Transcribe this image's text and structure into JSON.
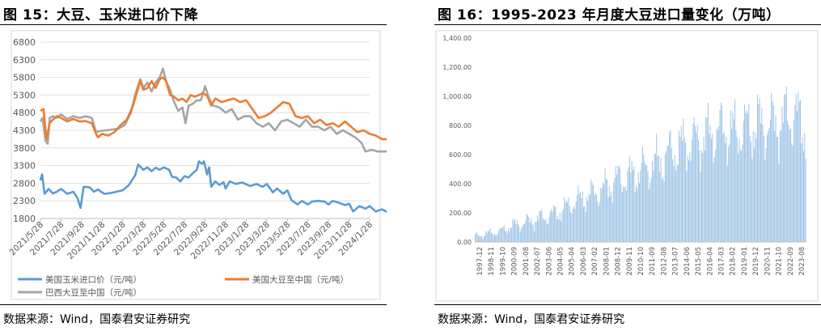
{
  "panels": [
    {
      "title": "图 15：大豆、玉米进口价下降",
      "source": "数据来源：Wind，国泰君安证券研究"
    },
    {
      "title": "图 16：1995-2023 年月度大豆进口量变化（万吨）",
      "source": "数据来源：Wind，国泰君安证券研究"
    }
  ],
  "chart_data": [
    {
      "type": "line",
      "title": "",
      "xlabel": "",
      "ylabel": "",
      "ylim": [
        1800,
        6800
      ],
      "yticks": [
        1800,
        2300,
        2800,
        3300,
        3800,
        4300,
        4800,
        5300,
        5800,
        6300,
        6800
      ],
      "xticks": [
        "2021/5/28",
        "2021/7/28",
        "2021/9/28",
        "2021/11/28",
        "2022/1/28",
        "2022/3/28",
        "2022/5/28",
        "2022/7/28",
        "2022/9/28",
        "2022/11/28",
        "2023/1/28",
        "2023/3/28",
        "2023/5/28",
        "2023/7/28",
        "2023/9/28",
        "2023/11/28",
        "2024/1/28"
      ],
      "grid": true,
      "legend": "bottom",
      "colors": {
        "corn": "#5b9bd5",
        "us_soy": "#ed7d31",
        "br_soy": "#a5a5a5",
        "grid": "#d9d9d9",
        "axis": "#bfbfbf"
      },
      "series": [
        {
          "name": "美国玉米进口价（元/吨）",
          "key": "corn",
          "points": [
            [
              0,
              2880
            ],
            [
              0.08,
              3050
            ],
            [
              0.2,
              2500
            ],
            [
              0.4,
              2640
            ],
            [
              0.6,
              2510
            ],
            [
              0.8,
              2560
            ],
            [
              1.0,
              2640
            ],
            [
              1.3,
              2500
            ],
            [
              1.6,
              2560
            ],
            [
              1.8,
              2380
            ],
            [
              1.95,
              2100
            ],
            [
              2.1,
              2700
            ],
            [
              2.4,
              2680
            ],
            [
              2.6,
              2560
            ],
            [
              2.8,
              2620
            ],
            [
              3.1,
              2500
            ],
            [
              3.4,
              2520
            ],
            [
              3.7,
              2560
            ],
            [
              4.0,
              2600
            ],
            [
              4.3,
              2750
            ],
            [
              4.6,
              3020
            ],
            [
              4.75,
              3330
            ],
            [
              5.0,
              3180
            ],
            [
              5.2,
              3250
            ],
            [
              5.4,
              3140
            ],
            [
              5.6,
              3240
            ],
            [
              5.8,
              3180
            ],
            [
              6.0,
              3250
            ],
            [
              6.1,
              3220
            ],
            [
              6.25,
              3180
            ],
            [
              6.4,
              2980
            ],
            [
              6.6,
              2960
            ],
            [
              6.8,
              2850
            ],
            [
              7.0,
              3000
            ],
            [
              7.2,
              2960
            ],
            [
              7.4,
              3080
            ],
            [
              7.6,
              3180
            ],
            [
              7.7,
              3420
            ],
            [
              7.85,
              3350
            ],
            [
              7.95,
              3420
            ],
            [
              8.1,
              3050
            ],
            [
              8.2,
              3250
            ],
            [
              8.3,
              2700
            ],
            [
              8.5,
              2850
            ],
            [
              8.7,
              2750
            ],
            [
              8.9,
              2830
            ],
            [
              9.0,
              2650
            ],
            [
              9.2,
              2850
            ],
            [
              9.5,
              2780
            ],
            [
              9.8,
              2820
            ],
            [
              10.2,
              2720
            ],
            [
              10.5,
              2780
            ],
            [
              10.8,
              2700
            ],
            [
              11.0,
              2780
            ],
            [
              11.3,
              2540
            ],
            [
              11.5,
              2650
            ],
            [
              11.8,
              2500
            ],
            [
              12.0,
              2600
            ],
            [
              12.2,
              2320
            ],
            [
              12.5,
              2200
            ],
            [
              12.7,
              2300
            ],
            [
              13.0,
              2200
            ],
            [
              13.2,
              2280
            ],
            [
              13.5,
              2300
            ],
            [
              13.8,
              2280
            ],
            [
              14.0,
              2200
            ],
            [
              14.2,
              2300
            ],
            [
              14.5,
              2250
            ],
            [
              14.8,
              2180
            ],
            [
              15.0,
              2220
            ],
            [
              15.2,
              2000
            ],
            [
              15.5,
              2150
            ],
            [
              15.8,
              2080
            ],
            [
              16.0,
              2150
            ],
            [
              16.3,
              2000
            ],
            [
              16.6,
              2060
            ],
            [
              16.8,
              2000
            ],
            [
              17.0,
              1960
            ]
          ]
        },
        {
          "name": "美国大豆至中国（元/吨）",
          "key": "us_soy",
          "points": [
            [
              0,
              4850
            ],
            [
              0.15,
              4900
            ],
            [
              0.3,
              4050
            ],
            [
              0.45,
              4500
            ],
            [
              0.6,
              4600
            ],
            [
              0.8,
              4700
            ],
            [
              1.0,
              4650
            ],
            [
              1.3,
              4550
            ],
            [
              1.6,
              4620
            ],
            [
              1.9,
              4550
            ],
            [
              2.2,
              4560
            ],
            [
              2.5,
              4500
            ],
            [
              2.7,
              4200
            ],
            [
              2.8,
              4100
            ],
            [
              3.0,
              4200
            ],
            [
              3.3,
              4150
            ],
            [
              3.6,
              4250
            ],
            [
              3.9,
              4450
            ],
            [
              4.2,
              4600
            ],
            [
              4.5,
              5000
            ],
            [
              4.7,
              5400
            ],
            [
              4.85,
              5700
            ],
            [
              5.0,
              5450
            ],
            [
              5.2,
              5500
            ],
            [
              5.4,
              5700
            ],
            [
              5.6,
              5500
            ],
            [
              5.8,
              5750
            ],
            [
              5.95,
              5800
            ],
            [
              6.1,
              5700
            ],
            [
              6.3,
              5300
            ],
            [
              6.5,
              5250
            ],
            [
              6.7,
              5150
            ],
            [
              6.9,
              5200
            ],
            [
              7.1,
              5100
            ],
            [
              7.3,
              5300
            ],
            [
              7.5,
              5250
            ],
            [
              7.7,
              5300
            ],
            [
              7.9,
              5350
            ],
            [
              8.1,
              5280
            ],
            [
              8.3,
              5000
            ],
            [
              8.5,
              5200
            ],
            [
              8.8,
              5100
            ],
            [
              9.1,
              5150
            ],
            [
              9.4,
              5200
            ],
            [
              9.7,
              5100
            ],
            [
              10.0,
              5150
            ],
            [
              10.3,
              4900
            ],
            [
              10.6,
              4650
            ],
            [
              10.9,
              4700
            ],
            [
              11.2,
              4800
            ],
            [
              11.5,
              4950
            ],
            [
              11.8,
              5100
            ],
            [
              12.1,
              5050
            ],
            [
              12.4,
              4700
            ],
            [
              12.7,
              4650
            ],
            [
              13.0,
              4700
            ],
            [
              13.3,
              4500
            ],
            [
              13.6,
              4600
            ],
            [
              13.9,
              4450
            ],
            [
              14.2,
              4500
            ],
            [
              14.5,
              4400
            ],
            [
              14.8,
              4550
            ],
            [
              15.1,
              4400
            ],
            [
              15.4,
              4250
            ],
            [
              15.7,
              4300
            ],
            [
              16.0,
              4200
            ],
            [
              16.3,
              4150
            ],
            [
              16.6,
              4050
            ],
            [
              16.8,
              4050
            ],
            [
              17.0,
              4050
            ]
          ]
        },
        {
          "name": "巴西大豆至中国（元/吨）",
          "key": "br_soy",
          "points": [
            [
              0,
              4550
            ],
            [
              0.1,
              4650
            ],
            [
              0.25,
              4000
            ],
            [
              0.35,
              3920
            ],
            [
              0.45,
              4650
            ],
            [
              0.6,
              4700
            ],
            [
              0.8,
              4650
            ],
            [
              1.0,
              4750
            ],
            [
              1.3,
              4620
            ],
            [
              1.6,
              4700
            ],
            [
              1.9,
              4650
            ],
            [
              2.2,
              4700
            ],
            [
              2.5,
              4650
            ],
            [
              2.7,
              4250
            ],
            [
              2.9,
              4280
            ],
            [
              3.2,
              4300
            ],
            [
              3.5,
              4320
            ],
            [
              3.8,
              4350
            ],
            [
              4.1,
              4450
            ],
            [
              4.4,
              4800
            ],
            [
              4.6,
              5300
            ],
            [
              4.85,
              5750
            ],
            [
              5.0,
              5500
            ],
            [
              5.2,
              5650
            ],
            [
              5.4,
              5400
            ],
            [
              5.6,
              5650
            ],
            [
              5.8,
              5800
            ],
            [
              5.95,
              6050
            ],
            [
              6.1,
              5700
            ],
            [
              6.3,
              5450
            ],
            [
              6.5,
              5100
            ],
            [
              6.7,
              4850
            ],
            [
              6.9,
              4950
            ],
            [
              7.05,
              4500
            ],
            [
              7.2,
              5000
            ],
            [
              7.4,
              5050
            ],
            [
              7.6,
              5150
            ],
            [
              7.8,
              5150
            ],
            [
              8.0,
              5550
            ],
            [
              8.2,
              5200
            ],
            [
              8.4,
              5000
            ],
            [
              8.7,
              4950
            ],
            [
              9.0,
              4800
            ],
            [
              9.3,
              4900
            ],
            [
              9.6,
              4600
            ],
            [
              9.9,
              4700
            ],
            [
              10.2,
              4700
            ],
            [
              10.5,
              4500
            ],
            [
              10.8,
              4400
            ],
            [
              11.1,
              4500
            ],
            [
              11.4,
              4300
            ],
            [
              11.7,
              4550
            ],
            [
              12.0,
              4600
            ],
            [
              12.3,
              4500
            ],
            [
              12.6,
              4400
            ],
            [
              12.9,
              4600
            ],
            [
              13.2,
              4400
            ],
            [
              13.5,
              4400
            ],
            [
              13.8,
              4300
            ],
            [
              14.1,
              4400
            ],
            [
              14.4,
              4200
            ],
            [
              14.7,
              4300
            ],
            [
              15.0,
              4200
            ],
            [
              15.3,
              4100
            ],
            [
              15.6,
              3950
            ],
            [
              15.8,
              3700
            ],
            [
              16.1,
              3750
            ],
            [
              16.4,
              3700
            ],
            [
              16.6,
              3700
            ],
            [
              17.0,
              3700
            ]
          ]
        }
      ]
    },
    {
      "type": "bar",
      "title": "",
      "xlabel": "",
      "ylabel": "",
      "ylim": [
        0,
        1400
      ],
      "yticks": [
        "0.00",
        "200.00",
        "400.00",
        "600.00",
        "800.00",
        "1,000.00",
        "1,200.00",
        "1,400.00"
      ],
      "xticks": [
        "1997-12",
        "1998-11",
        "1999-10",
        "2000-09",
        "2001-08",
        "2002-07",
        "2003-06",
        "2004-05",
        "2005-04",
        "2006-03",
        "2007-02",
        "2008-01",
        "2008-12",
        "2009-11",
        "2010-10",
        "2011-09",
        "2012-08",
        "2013-07",
        "2014-06",
        "2015-05",
        "2016-04",
        "2017-03",
        "2018-02",
        "2019-01",
        "2019-12",
        "2020-11",
        "2021-10",
        "2022-09",
        "2023-08"
      ],
      "grid": false,
      "legend": "none",
      "colors": {
        "bar": "#9dc3e6",
        "axis": "#bfbfbf"
      },
      "start_month": "1997-12",
      "annual_peak": [
        70,
        95,
        110,
        170,
        200,
        230,
        260,
        300,
        360,
        420,
        460,
        520,
        600,
        620,
        680,
        720,
        800,
        880,
        920,
        960,
        1000,
        1050,
        1020,
        1060,
        1100,
        1080,
        1120,
        1200,
        1050
      ],
      "annual_trough": [
        10,
        20,
        30,
        50,
        60,
        70,
        90,
        110,
        150,
        180,
        200,
        220,
        260,
        280,
        300,
        330,
        350,
        400,
        430,
        450,
        480,
        500,
        480,
        520,
        500,
        520,
        540,
        560,
        500
      ]
    }
  ]
}
